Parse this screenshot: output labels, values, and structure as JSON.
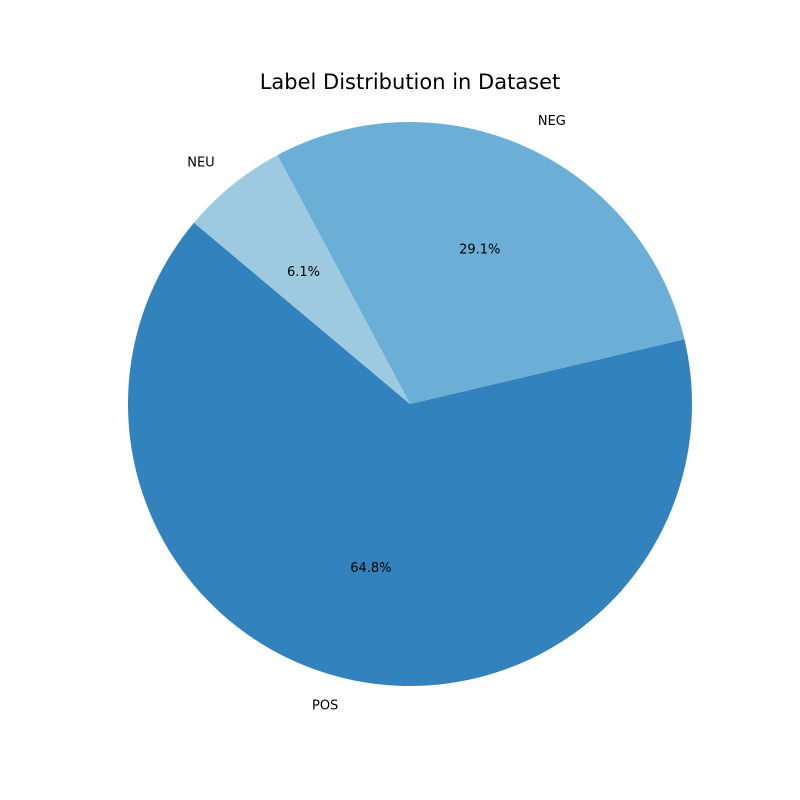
{
  "chart_data": {
    "type": "pie",
    "title": "Label Distribution in Dataset",
    "categories": [
      "POS",
      "NEG",
      "NEU"
    ],
    "values": [
      64.8,
      29.1,
      6.1
    ],
    "value_labels": [
      "64.8%",
      "29.1%",
      "6.1%"
    ],
    "colors": [
      "#3182bd",
      "#6baed6",
      "#9ecae1"
    ],
    "start_angle_deg": 140,
    "direction": "counterclockwise",
    "legend": "none"
  }
}
